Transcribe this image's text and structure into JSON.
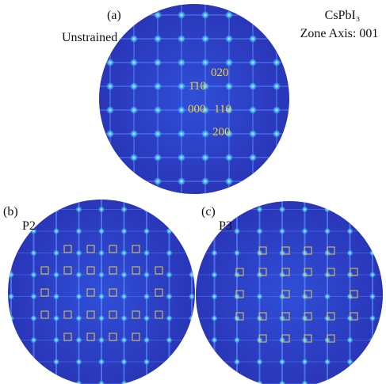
{
  "panel_a": {
    "label": "(a)",
    "condition": "Unstrained",
    "material": "CsPbI₃",
    "zone_axis": "Zone Axis: 001",
    "spots": [
      "020",
      "1̄10",
      "000",
      "110",
      "200"
    ]
  },
  "panel_b": {
    "label": "(b)",
    "condition": "P2"
  },
  "panel_c": {
    "label": "(c)",
    "condition": "P3"
  }
}
